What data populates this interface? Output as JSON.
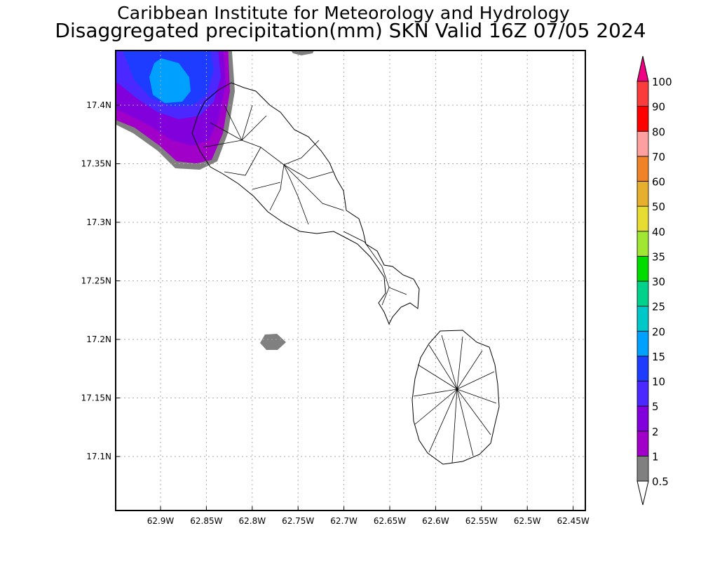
{
  "title": {
    "line1": "Caribbean Institute for Meteorology and Hydrology",
    "line2": "Disaggregated precipitation(mm) SKN Valid 16Z 07/05 2024"
  },
  "axes": {
    "x_ticks": [
      "62.9W",
      "62.85W",
      "62.8W",
      "62.75W",
      "62.7W",
      "62.65W",
      "62.6W",
      "62.55W",
      "62.5W",
      "62.45W"
    ],
    "y_ticks": [
      "17.4N",
      "17.35N",
      "17.3N",
      "17.25N",
      "17.2N",
      "17.15N",
      "17.1N"
    ]
  },
  "colorbar": {
    "labels": [
      "0.5",
      "1",
      "2",
      "5",
      "10",
      "15",
      "20",
      "25",
      "30",
      "35",
      "40",
      "50",
      "60",
      "70",
      "80",
      "90",
      "100"
    ],
    "colors": [
      "#808080",
      "#a000c8",
      "#8200dc",
      "#4b28ff",
      "#1e3cff",
      "#00a0ff",
      "#00c8c8",
      "#00d28c",
      "#00dc00",
      "#a0e632",
      "#e6dc32",
      "#e6af2d",
      "#f08228",
      "#ffa0a0",
      "#ff0000",
      "#fa3c3c"
    ],
    "over_color": "#f00082",
    "under_color": "#ffffff"
  }
}
